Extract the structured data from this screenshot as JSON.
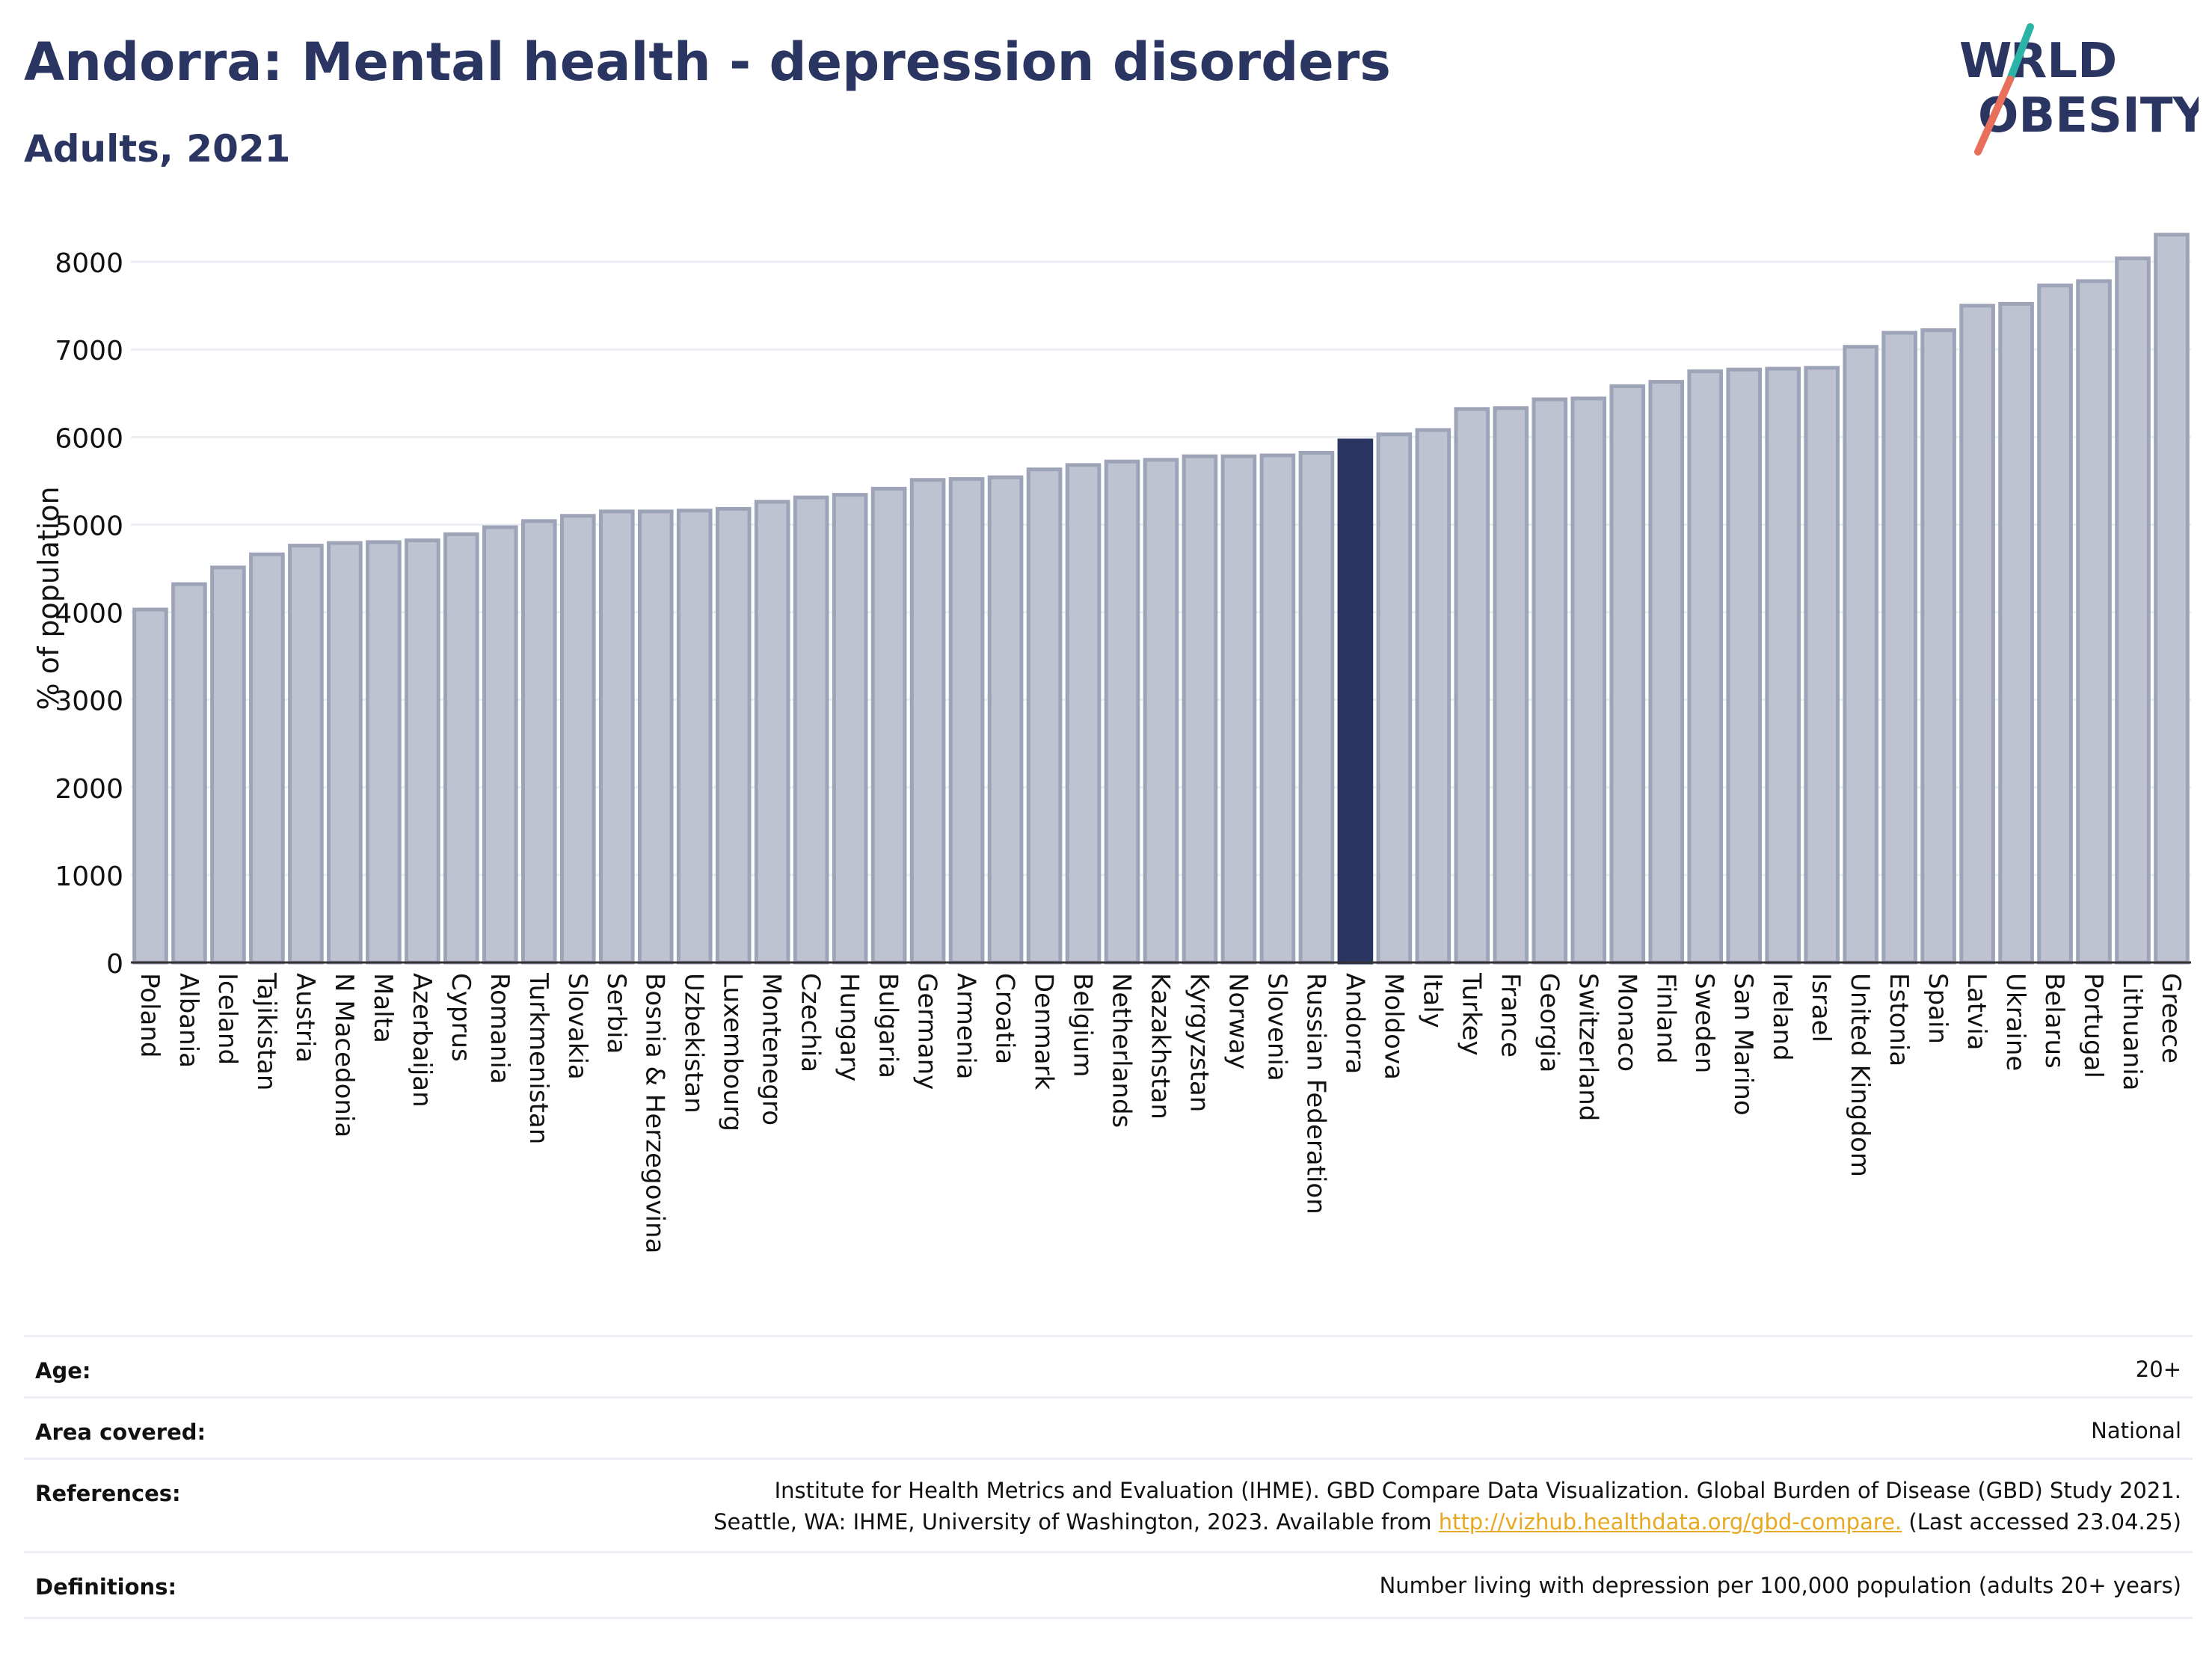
{
  "header": {
    "title": "Andorra: Mental health - depression disorders",
    "subtitle": "Adults, 2021",
    "logo_text": "WORLD OBESITY"
  },
  "colors": {
    "title": "#2a3561",
    "bar_default": "#bfc3d1",
    "bar_default_border": "#9ea4b8",
    "bar_highlight": "#2a3561",
    "grid": "#eceef3",
    "link": "#e8a820"
  },
  "chart_data": {
    "type": "bar",
    "ylabel": "% of population",
    "ylim": [
      0,
      8300
    ],
    "yticks": [
      0,
      1000,
      2000,
      3000,
      4000,
      5000,
      6000,
      7000,
      8000
    ],
    "grid": true,
    "highlight": "Andorra",
    "categories": [
      "Poland",
      "Albania",
      "Iceland",
      "Tajikistan",
      "Austria",
      "N Macedonia",
      "Malta",
      "Azerbaijan",
      "Cyprus",
      "Romania",
      "Turkmenistan",
      "Slovakia",
      "Serbia",
      "Bosnia & Herzegovina",
      "Uzbekistan",
      "Luxembourg",
      "Montenegro",
      "Czechia",
      "Hungary",
      "Bulgaria",
      "Germany",
      "Armenia",
      "Croatia",
      "Denmark",
      "Belgium",
      "Netherlands",
      "Kazakhstan",
      "Kyrgyzstan",
      "Norway",
      "Slovenia",
      "Russian Federation",
      "Andorra",
      "Moldova",
      "Italy",
      "Turkey",
      "France",
      "Georgia",
      "Switzerland",
      "Monaco",
      "Finland",
      "Sweden",
      "San Marino",
      "Ireland",
      "Israel",
      "United Kingdom",
      "Estonia",
      "Spain",
      "Latvia",
      "Ukraine",
      "Belarus",
      "Portugal",
      "Lithuania",
      "Greece"
    ],
    "values": [
      4030,
      4320,
      4510,
      4660,
      4760,
      4790,
      4800,
      4820,
      4890,
      4970,
      5040,
      5100,
      5150,
      5150,
      5160,
      5180,
      5260,
      5310,
      5340,
      5410,
      5510,
      5520,
      5540,
      5630,
      5680,
      5720,
      5740,
      5780,
      5780,
      5790,
      5820,
      5960,
      6030,
      6080,
      6320,
      6330,
      6430,
      6440,
      6580,
      6630,
      6750,
      6770,
      6780,
      6790,
      7030,
      7190,
      7220,
      7500,
      7520,
      7730,
      7780,
      8040,
      8310
    ]
  },
  "info": {
    "age": {
      "label": "Age:",
      "value": "20+"
    },
    "area": {
      "label": "Area covered:",
      "value": "National"
    },
    "references": {
      "label": "References:",
      "line1": "Institute for Health Metrics and Evaluation (IHME). GBD Compare Data Visualization. Global Burden of Disease (GBD) Study 2021.",
      "line2_pre": "Seattle, WA: IHME, University of Washington, 2023. Available from ",
      "link": "http://vizhub.healthdata.org/gbd-compare.",
      "line2_post": " (Last accessed 23.04.25)"
    },
    "definitions": {
      "label": "Definitions:",
      "value": "Number living with depression per 100,000 population (adults 20+ years)"
    }
  }
}
